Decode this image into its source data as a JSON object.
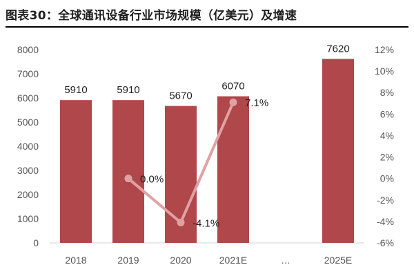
{
  "page": {
    "title": "图表30：全球通讯设备行业市场规模（亿美元）及增速"
  },
  "colors": {
    "bar": "#b0474a",
    "line": "#e1a1a3",
    "rule": "#000000"
  },
  "chart_data": {
    "type": "bar",
    "title": "图表30：全球通讯设备行业市场规模（亿美元）及增速",
    "categories": [
      "2018",
      "2019",
      "2020",
      "2021E",
      "…",
      "2025E"
    ],
    "series": [
      {
        "type": "bar",
        "axis": "left",
        "values": [
          5910,
          5910,
          5670,
          6070,
          null,
          7620
        ],
        "labels": [
          "5910",
          "5910",
          "5670",
          "6070",
          "",
          "7620"
        ]
      },
      {
        "type": "line",
        "axis": "right",
        "values": [
          null,
          0.0,
          -4.1,
          7.1,
          null,
          null
        ],
        "labels": [
          "",
          "0.0%",
          "-4.1%",
          "7.1%",
          "",
          ""
        ]
      }
    ],
    "left_axis": {
      "ylim": [
        0,
        8000
      ],
      "ticks": [
        "0",
        "1000",
        "2000",
        "3000",
        "4000",
        "5000",
        "6000",
        "7000",
        "8000"
      ]
    },
    "right_axis": {
      "ylim": [
        -6,
        12
      ],
      "ticks": [
        "-6%",
        "-4%",
        "-2%",
        "0%",
        "2%",
        "4%",
        "6%",
        "8%",
        "10%",
        "12%"
      ]
    },
    "grid": false,
    "legend": "none"
  }
}
